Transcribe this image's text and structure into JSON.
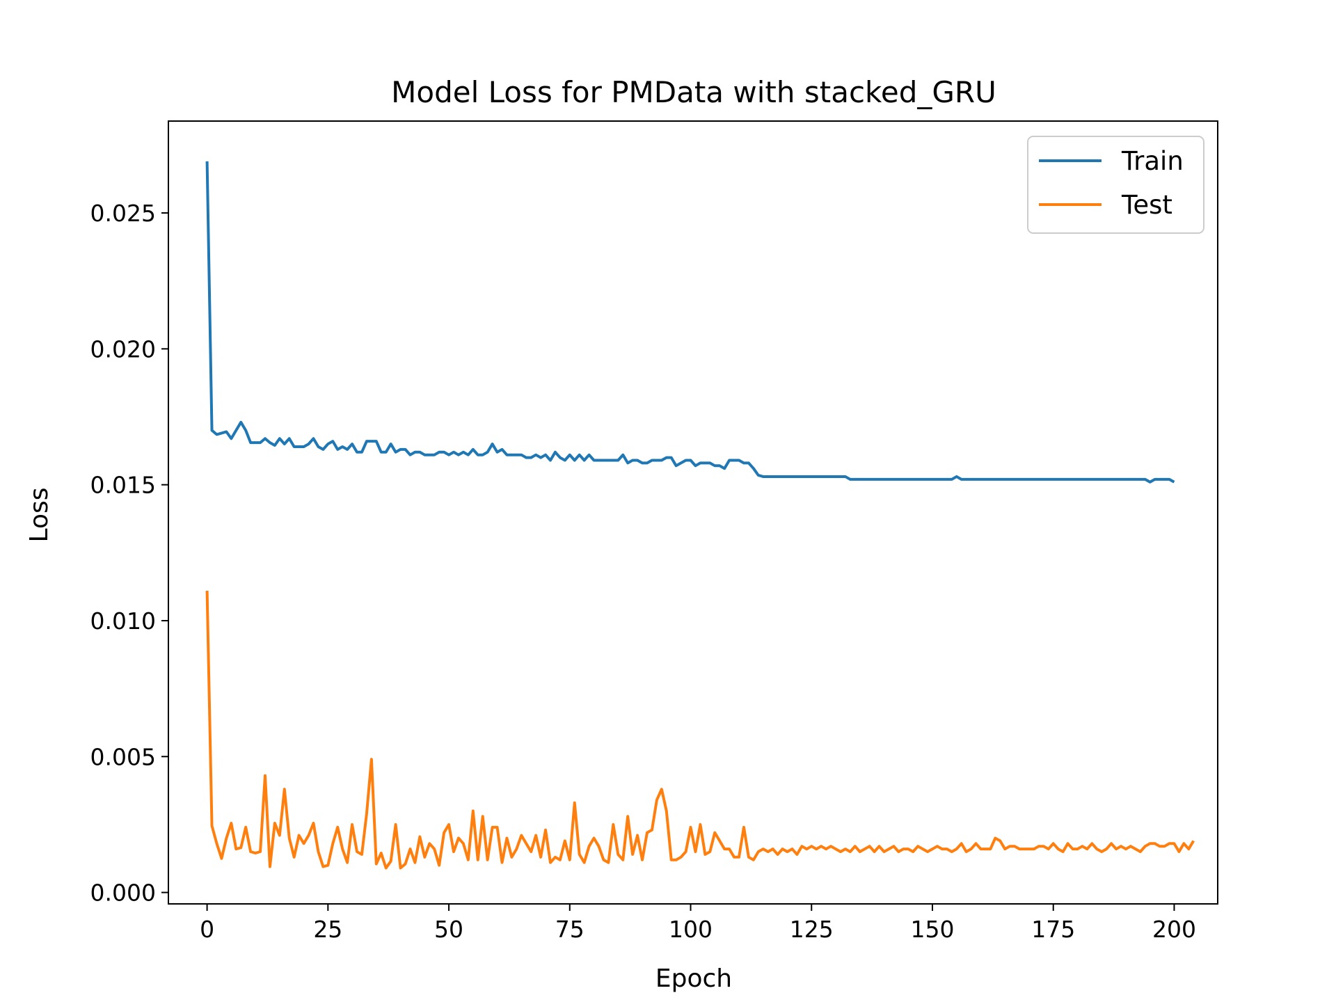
{
  "chart_data": {
    "type": "line",
    "title": "Model Loss for PMData with stacked_GRU",
    "xlabel": "Epoch",
    "ylabel": "Loss",
    "xlim": [
      -8,
      209
    ],
    "ylim": [
      -0.00042,
      0.02838
    ],
    "xticks": [
      0,
      25,
      50,
      75,
      100,
      125,
      150,
      175,
      200
    ],
    "xtick_labels": [
      "0",
      "25",
      "50",
      "75",
      "100",
      "125",
      "150",
      "175",
      "200"
    ],
    "yticks": [
      0.0,
      0.005,
      0.01,
      0.015,
      0.02,
      0.025
    ],
    "ytick_labels": [
      "0.000",
      "0.005",
      "0.010",
      "0.015",
      "0.020",
      "0.025"
    ],
    "grid": false,
    "legend_position": "top-right",
    "series": [
      {
        "name": "Train",
        "color": "#1f77b4",
        "values": [
          0.0269,
          0.017,
          0.01685,
          0.0169,
          0.01695,
          0.0167,
          0.017,
          0.0173,
          0.017,
          0.01655,
          0.01655,
          0.01655,
          0.0167,
          0.01655,
          0.01645,
          0.0167,
          0.0165,
          0.0167,
          0.0164,
          0.0164,
          0.0164,
          0.0165,
          0.0167,
          0.0164,
          0.0163,
          0.0165,
          0.0166,
          0.0163,
          0.0164,
          0.0163,
          0.0165,
          0.0162,
          0.0162,
          0.0166,
          0.0166,
          0.0166,
          0.0162,
          0.0162,
          0.0165,
          0.0162,
          0.0163,
          0.0163,
          0.0161,
          0.0162,
          0.0162,
          0.0161,
          0.0161,
          0.0161,
          0.0162,
          0.0162,
          0.0161,
          0.0162,
          0.0161,
          0.0162,
          0.0161,
          0.0163,
          0.0161,
          0.0161,
          0.0162,
          0.0165,
          0.0162,
          0.0163,
          0.0161,
          0.0161,
          0.0161,
          0.0161,
          0.016,
          0.016,
          0.0161,
          0.016,
          0.0161,
          0.0159,
          0.0162,
          0.016,
          0.0159,
          0.0161,
          0.0159,
          0.0161,
          0.0159,
          0.0161,
          0.0159,
          0.0159,
          0.0159,
          0.0159,
          0.0159,
          0.0159,
          0.0161,
          0.0158,
          0.0159,
          0.0159,
          0.0158,
          0.0158,
          0.0159,
          0.0159,
          0.0159,
          0.016,
          0.016,
          0.0157,
          0.0158,
          0.0159,
          0.0159,
          0.0157,
          0.0158,
          0.0158,
          0.0158,
          0.0157,
          0.0157,
          0.0156,
          0.0159,
          0.0159,
          0.0159,
          0.0158,
          0.0158,
          0.0156,
          0.01535,
          0.0153,
          0.0153,
          0.0153,
          0.0153,
          0.0153,
          0.0153,
          0.0153,
          0.0153,
          0.0153,
          0.0153,
          0.0153,
          0.0153,
          0.0153,
          0.0153,
          0.0153,
          0.0153,
          0.0153,
          0.0153,
          0.0152,
          0.0152,
          0.0152,
          0.0152,
          0.0152,
          0.0152,
          0.0152,
          0.0152,
          0.0152,
          0.0152,
          0.0152,
          0.0152,
          0.0152,
          0.0152,
          0.0152,
          0.0152,
          0.0152,
          0.0152,
          0.0152,
          0.0152,
          0.0152,
          0.0152,
          0.0153,
          0.0152,
          0.0152,
          0.0152,
          0.0152,
          0.0152,
          0.0152,
          0.0152,
          0.0152,
          0.0152,
          0.0152,
          0.0152,
          0.0152,
          0.0152,
          0.0152,
          0.0152,
          0.0152,
          0.0152,
          0.0152,
          0.0152,
          0.0152,
          0.0152,
          0.0152,
          0.0152,
          0.0152,
          0.0152,
          0.0152,
          0.0152,
          0.0152,
          0.0152,
          0.0152,
          0.0152,
          0.0152,
          0.0152,
          0.0152,
          0.0152,
          0.0152,
          0.0152,
          0.0152,
          0.0152,
          0.0151,
          0.0152,
          0.0152,
          0.0152,
          0.0152,
          0.0151
        ]
      },
      {
        "name": "Test",
        "color": "#ff7f0e",
        "values": [
          0.0111,
          0.00245,
          0.0018,
          0.00125,
          0.002,
          0.00255,
          0.0016,
          0.00165,
          0.0024,
          0.0015,
          0.00145,
          0.0015,
          0.0043,
          0.00095,
          0.00255,
          0.0021,
          0.0038,
          0.002,
          0.0013,
          0.0021,
          0.0018,
          0.0021,
          0.00255,
          0.0015,
          0.00095,
          0.001,
          0.0018,
          0.0024,
          0.0016,
          0.0011,
          0.0025,
          0.0015,
          0.0014,
          0.0029,
          0.0049,
          0.00105,
          0.00145,
          0.0009,
          0.00115,
          0.0025,
          0.0009,
          0.00105,
          0.0016,
          0.0011,
          0.00205,
          0.0013,
          0.0018,
          0.0016,
          0.001,
          0.0022,
          0.0025,
          0.0015,
          0.002,
          0.0018,
          0.0012,
          0.003,
          0.0012,
          0.0028,
          0.0012,
          0.0024,
          0.0024,
          0.0011,
          0.002,
          0.0013,
          0.0016,
          0.0021,
          0.0018,
          0.0015,
          0.0021,
          0.0013,
          0.0023,
          0.0011,
          0.0013,
          0.0012,
          0.0019,
          0.0012,
          0.0033,
          0.0014,
          0.0011,
          0.0017,
          0.002,
          0.0017,
          0.0012,
          0.0011,
          0.0025,
          0.0014,
          0.0012,
          0.0028,
          0.0014,
          0.0021,
          0.0012,
          0.0022,
          0.0023,
          0.0034,
          0.0038,
          0.003,
          0.0012,
          0.0012,
          0.0013,
          0.0015,
          0.0024,
          0.0015,
          0.0025,
          0.0014,
          0.0015,
          0.0022,
          0.0019,
          0.0016,
          0.0016,
          0.0013,
          0.0013,
          0.0024,
          0.0013,
          0.0012,
          0.0015,
          0.0016,
          0.0015,
          0.0016,
          0.0014,
          0.0016,
          0.0015,
          0.0016,
          0.0014,
          0.0017,
          0.0016,
          0.0017,
          0.0016,
          0.0017,
          0.0016,
          0.0017,
          0.0016,
          0.0015,
          0.0016,
          0.0015,
          0.0017,
          0.0015,
          0.0016,
          0.0017,
          0.0015,
          0.0017,
          0.0015,
          0.0016,
          0.0017,
          0.0015,
          0.0016,
          0.0016,
          0.0015,
          0.0017,
          0.0016,
          0.0015,
          0.0016,
          0.0017,
          0.0016,
          0.0016,
          0.0015,
          0.0016,
          0.0018,
          0.0015,
          0.0016,
          0.0018,
          0.0016,
          0.0016,
          0.0016,
          0.002,
          0.0019,
          0.0016,
          0.0017,
          0.0017,
          0.0016,
          0.0016,
          0.0016,
          0.0016,
          0.0017,
          0.0017,
          0.0016,
          0.0018,
          0.0016,
          0.0015,
          0.0018,
          0.0016,
          0.0016,
          0.0017,
          0.0016,
          0.0018,
          0.0016,
          0.0015,
          0.0016,
          0.0018,
          0.0016,
          0.0017,
          0.0016,
          0.0017,
          0.0016,
          0.0015,
          0.0017,
          0.0018,
          0.0018,
          0.0017,
          0.0017,
          0.0018,
          0.0018,
          0.0015,
          0.0018,
          0.0016,
          0.0019
        ]
      }
    ]
  }
}
